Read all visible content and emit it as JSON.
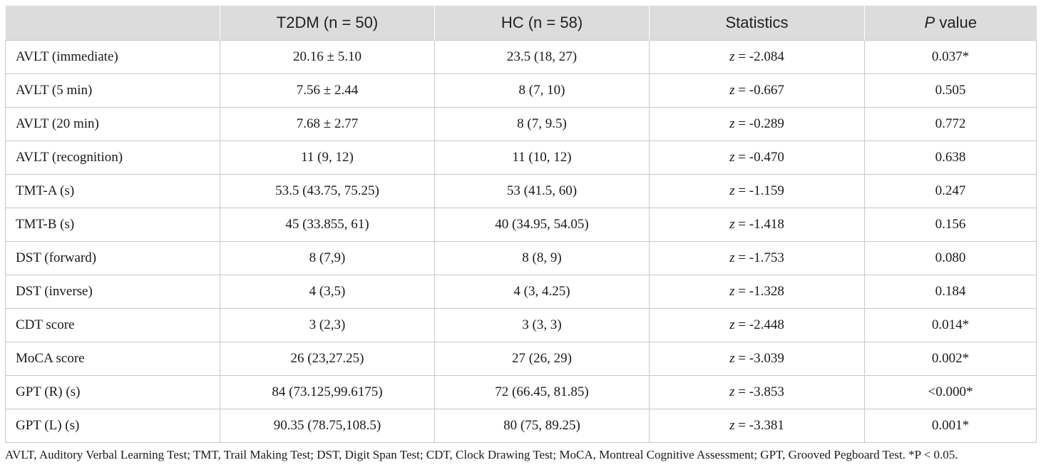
{
  "table": {
    "headers": {
      "blank": "",
      "t2dm": "T2DM (n = 50)",
      "hc": "HC (n = 58)",
      "statistics": "Statistics",
      "p_italic": "P",
      "p_rest": " value"
    },
    "rows": [
      {
        "label": "AVLT (immediate)",
        "t2dm": "20.16 ± 5.10",
        "hc": "23.5 (18, 27)",
        "stat_var": "z",
        "stat_value": " = -2.084",
        "p": "0.037*"
      },
      {
        "label": "AVLT (5 min)",
        "t2dm": "7.56 ± 2.44",
        "hc": "8 (7, 10)",
        "stat_var": "z",
        "stat_value": " = -0.667",
        "p": "0.505"
      },
      {
        "label": "AVLT (20 min)",
        "t2dm": "7.68 ± 2.77",
        "hc": "8 (7, 9.5)",
        "stat_var": "z",
        "stat_value": " = -0.289",
        "p": "0.772"
      },
      {
        "label": "AVLT (recognition)",
        "t2dm": "11 (9, 12)",
        "hc": "11 (10, 12)",
        "stat_var": "z",
        "stat_value": " = -0.470",
        "p": "0.638"
      },
      {
        "label": "TMT-A (s)",
        "t2dm": "53.5 (43.75, 75.25)",
        "hc": "53 (41.5, 60)",
        "stat_var": "z",
        "stat_value": " = -1.159",
        "p": "0.247"
      },
      {
        "label": "TMT-B (s)",
        "t2dm": "45 (33.855, 61)",
        "hc": "40 (34.95, 54.05)",
        "stat_var": "z",
        "stat_value": " = -1.418",
        "p": "0.156"
      },
      {
        "label": "DST (forward)",
        "t2dm": "8 (7,9)",
        "hc": "8 (8, 9)",
        "stat_var": "z",
        "stat_value": " = -1.753",
        "p": "0.080"
      },
      {
        "label": "DST (inverse)",
        "t2dm": "4 (3,5)",
        "hc": "4 (3, 4.25)",
        "stat_var": "z",
        "stat_value": " = -1.328",
        "p": "0.184"
      },
      {
        "label": "CDT score",
        "t2dm": "3 (2,3)",
        "hc": "3 (3, 3)",
        "stat_var": "z",
        "stat_value": " = -2.448",
        "p": "0.014*"
      },
      {
        "label": "MoCA score",
        "t2dm": "26 (23,27.25)",
        "hc": "27 (26, 29)",
        "stat_var": "z",
        "stat_value": " = -3.039",
        "p": "0.002*"
      },
      {
        "label": "GPT (R) (s)",
        "t2dm": "84 (73.125,99.6175)",
        "hc": "72 (66.45, 81.85)",
        "stat_var": "z",
        "stat_value": " = -3.853",
        "p": "<0.000*"
      },
      {
        "label": "GPT (L) (s)",
        "t2dm": "90.35 (78.75,108.5)",
        "hc": "80 (75, 89.25)",
        "stat_var": "z",
        "stat_value": " = -3.381",
        "p": "0.001*"
      }
    ]
  },
  "footnote": "AVLT, Auditory Verbal Learning Test; TMT, Trail Making Test; DST, Digit Span Test; CDT, Clock Drawing Test; MoCA, Montreal Cognitive Assessment; GPT, Grooved Pegboard Test. *P < 0.05.",
  "colors": {
    "header_bg": "#dcdcdc",
    "border": "#c8c8c8",
    "text": "#1a1a1a"
  }
}
